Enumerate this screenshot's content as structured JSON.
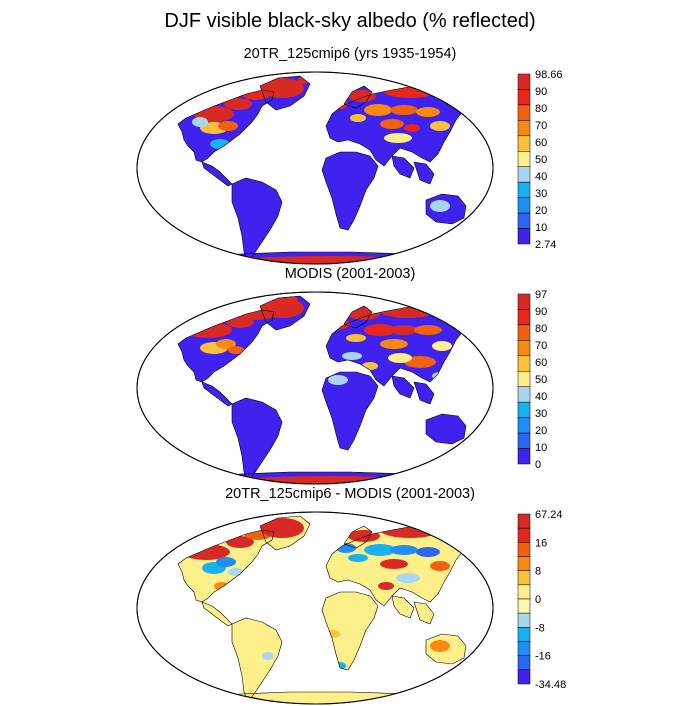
{
  "figure": {
    "title": "DJF visible black-sky albedo (% reflected)"
  },
  "panels": [
    {
      "title": "20TR_125cmip6 (yrs 1935-1954)",
      "colorbar": {
        "labels": [
          "98.66",
          "90",
          "80",
          "70",
          "60",
          "50",
          "40",
          "30",
          "20",
          "10",
          "2.74"
        ],
        "colors": [
          "#d72a24",
          "#e8261c",
          "#f2620e",
          "#f88a10",
          "#fbc13a",
          "#fdf08a",
          "#a9d5f0",
          "#19b1f0",
          "#218ef3",
          "#2a66f1",
          "#3f22ee"
        ]
      }
    },
    {
      "title": "MODIS (2001-2003)",
      "colorbar": {
        "labels": [
          "97",
          "90",
          "80",
          "70",
          "60",
          "50",
          "40",
          "30",
          "20",
          "10",
          "0"
        ],
        "colors": [
          "#d72a24",
          "#e8261c",
          "#f2620e",
          "#f88a10",
          "#fbc13a",
          "#fdf08a",
          "#a9d5f0",
          "#19b1f0",
          "#218ef3",
          "#2a66f1",
          "#3f22ee"
        ]
      }
    },
    {
      "title": "20TR_125cmip6 - MODIS (2001-2003)",
      "colorbar": {
        "labels": [
          "67.24",
          "",
          "16",
          "",
          "8",
          "",
          "0",
          "",
          "-8",
          "",
          "-16",
          "",
          "-34.48"
        ],
        "colors": [
          "#d72a24",
          "#e8261c",
          "#f2620e",
          "#f88a10",
          "#fbc13a",
          "#fdf08a",
          "#fdf6b0",
          "#a9d5f0",
          "#19b1f0",
          "#218ef3",
          "#2a66f1",
          "#3f22ee"
        ]
      }
    }
  ],
  "colors": {
    "land_base_panel1": "#3f22ee",
    "land_base_panel2": "#3f22ee",
    "land_base_panel3": "#fdf08a",
    "high_albedo": "#d72a24",
    "mid_albedo": "#f88a10",
    "low_albedo": "#2a66f1"
  }
}
